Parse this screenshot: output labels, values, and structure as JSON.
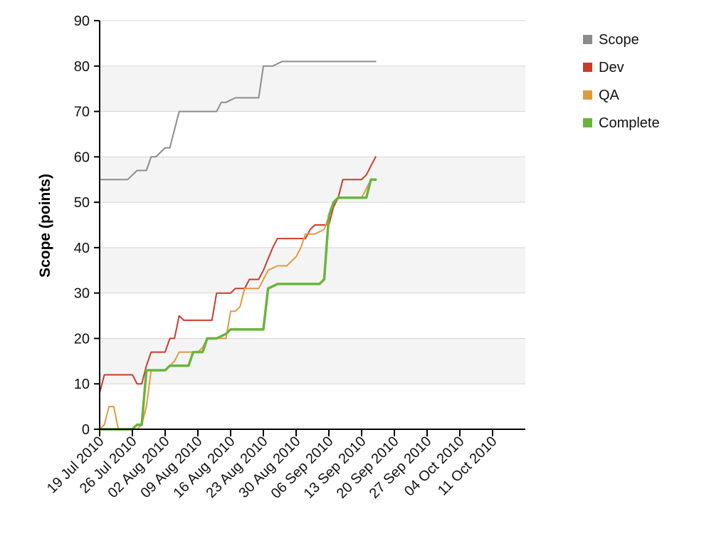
{
  "chart_data": {
    "type": "line",
    "title": "",
    "xlabel": "",
    "ylabel": "Scope (points)",
    "ylim": [
      0,
      90
    ],
    "xlim": [
      "2010-07-19",
      "2010-10-18"
    ],
    "yticks": [
      "0",
      "10",
      "20",
      "30",
      "40",
      "50",
      "60",
      "70",
      "80",
      "90"
    ],
    "xticks": [
      "19 Jul 2010",
      "26 Jul 2010",
      "02 Aug 2010",
      "09 Aug 2010",
      "16 Aug 2010",
      "23 Aug 2010",
      "30 Aug 2010",
      "06 Sep 2010",
      "13 Sep 2010",
      "20 Sep 2010",
      "27 Sep 2010",
      "04 Oct 2010",
      "11 Oct 2010"
    ],
    "xtick_dates": [
      "2010-07-19",
      "2010-07-26",
      "2010-08-02",
      "2010-08-09",
      "2010-08-16",
      "2010-08-23",
      "2010-08-30",
      "2010-09-06",
      "2010-09-13",
      "2010-09-20",
      "2010-09-27",
      "2010-10-04",
      "2010-10-11"
    ],
    "grid": true,
    "alternating_bands": true,
    "legend_position": "top-right",
    "series": [
      {
        "name": "Scope",
        "color": "#8c8c8c",
        "width": 2,
        "points": [
          [
            "2010-07-19",
            55
          ],
          [
            "2010-07-22",
            55
          ],
          [
            "2010-07-25",
            55
          ],
          [
            "2010-07-26",
            56
          ],
          [
            "2010-07-27",
            57
          ],
          [
            "2010-07-29",
            57
          ],
          [
            "2010-07-30",
            60
          ],
          [
            "2010-07-31",
            60
          ],
          [
            "2010-08-01",
            61
          ],
          [
            "2010-08-02",
            62
          ],
          [
            "2010-08-03",
            62
          ],
          [
            "2010-08-05",
            70
          ],
          [
            "2010-08-07",
            70
          ],
          [
            "2010-08-10",
            70
          ],
          [
            "2010-08-13",
            70
          ],
          [
            "2010-08-14",
            72
          ],
          [
            "2010-08-15",
            72
          ],
          [
            "2010-08-17",
            73
          ],
          [
            "2010-08-19",
            73
          ],
          [
            "2010-08-22",
            73
          ],
          [
            "2010-08-23",
            80
          ],
          [
            "2010-08-25",
            80
          ],
          [
            "2010-08-27",
            81
          ],
          [
            "2010-09-01",
            81
          ],
          [
            "2010-09-05",
            81
          ],
          [
            "2010-09-12",
            81
          ],
          [
            "2010-09-16",
            81
          ]
        ]
      },
      {
        "name": "Dev",
        "color": "#cc3b2a",
        "width": 2,
        "points": [
          [
            "2010-07-19",
            8
          ],
          [
            "2010-07-20",
            12
          ],
          [
            "2010-07-22",
            12
          ],
          [
            "2010-07-24",
            12
          ],
          [
            "2010-07-26",
            12
          ],
          [
            "2010-07-27",
            10
          ],
          [
            "2010-07-28",
            10
          ],
          [
            "2010-07-29",
            14
          ],
          [
            "2010-07-30",
            17
          ],
          [
            "2010-07-31",
            17
          ],
          [
            "2010-08-02",
            17
          ],
          [
            "2010-08-03",
            20
          ],
          [
            "2010-08-04",
            20
          ],
          [
            "2010-08-05",
            25
          ],
          [
            "2010-08-06",
            24
          ],
          [
            "2010-08-08",
            24
          ],
          [
            "2010-08-10",
            24
          ],
          [
            "2010-08-12",
            24
          ],
          [
            "2010-08-13",
            30
          ],
          [
            "2010-08-14",
            30
          ],
          [
            "2010-08-16",
            30
          ],
          [
            "2010-08-17",
            31
          ],
          [
            "2010-08-19",
            31
          ],
          [
            "2010-08-20",
            33
          ],
          [
            "2010-08-22",
            33
          ],
          [
            "2010-08-23",
            35
          ],
          [
            "2010-08-25",
            40
          ],
          [
            "2010-08-26",
            42
          ],
          [
            "2010-08-28",
            42
          ],
          [
            "2010-08-30",
            42
          ],
          [
            "2010-09-01",
            42
          ],
          [
            "2010-09-02",
            44
          ],
          [
            "2010-09-03",
            45
          ],
          [
            "2010-09-05",
            45
          ],
          [
            "2010-09-06",
            45
          ],
          [
            "2010-09-07",
            49
          ],
          [
            "2010-09-08",
            51
          ],
          [
            "2010-09-09",
            55
          ],
          [
            "2010-09-11",
            55
          ],
          [
            "2010-09-13",
            55
          ],
          [
            "2010-09-14",
            56
          ],
          [
            "2010-09-15",
            58
          ],
          [
            "2010-09-16",
            60
          ]
        ]
      },
      {
        "name": "QA",
        "color": "#e09a3e",
        "width": 2,
        "points": [
          [
            "2010-07-19",
            0
          ],
          [
            "2010-07-20",
            1
          ],
          [
            "2010-07-21",
            5
          ],
          [
            "2010-07-22",
            5
          ],
          [
            "2010-07-23",
            0
          ],
          [
            "2010-07-25",
            0
          ],
          [
            "2010-07-26",
            0
          ],
          [
            "2010-07-27",
            0
          ],
          [
            "2010-07-28",
            1
          ],
          [
            "2010-07-29",
            5
          ],
          [
            "2010-07-30",
            13
          ],
          [
            "2010-08-01",
            13
          ],
          [
            "2010-08-02",
            13
          ],
          [
            "2010-08-03",
            14
          ],
          [
            "2010-08-04",
            15
          ],
          [
            "2010-08-05",
            17
          ],
          [
            "2010-08-07",
            17
          ],
          [
            "2010-08-09",
            17
          ],
          [
            "2010-08-10",
            18
          ],
          [
            "2010-08-11",
            20
          ],
          [
            "2010-08-13",
            20
          ],
          [
            "2010-08-15",
            20
          ],
          [
            "2010-08-16",
            26
          ],
          [
            "2010-08-17",
            26
          ],
          [
            "2010-08-18",
            27
          ],
          [
            "2010-08-19",
            31
          ],
          [
            "2010-08-20",
            31
          ],
          [
            "2010-08-22",
            31
          ],
          [
            "2010-08-24",
            35
          ],
          [
            "2010-08-26",
            36
          ],
          [
            "2010-08-28",
            36
          ],
          [
            "2010-08-30",
            38
          ],
          [
            "2010-08-31",
            40
          ],
          [
            "2010-09-01",
            43
          ],
          [
            "2010-09-03",
            43
          ],
          [
            "2010-09-05",
            44
          ],
          [
            "2010-09-06",
            47
          ],
          [
            "2010-09-07",
            50
          ],
          [
            "2010-09-08",
            51
          ],
          [
            "2010-09-10",
            51
          ],
          [
            "2010-09-13",
            51
          ],
          [
            "2010-09-14",
            53
          ],
          [
            "2010-09-15",
            55
          ],
          [
            "2010-09-16",
            55
          ]
        ]
      },
      {
        "name": "Complete",
        "color": "#6ab43d",
        "width": 3.5,
        "points": [
          [
            "2010-07-19",
            0
          ],
          [
            "2010-07-22",
            0
          ],
          [
            "2010-07-25",
            0
          ],
          [
            "2010-07-26",
            0
          ],
          [
            "2010-07-27",
            1
          ],
          [
            "2010-07-28",
            1
          ],
          [
            "2010-07-29",
            13
          ],
          [
            "2010-07-31",
            13
          ],
          [
            "2010-08-02",
            13
          ],
          [
            "2010-08-03",
            14
          ],
          [
            "2010-08-05",
            14
          ],
          [
            "2010-08-07",
            14
          ],
          [
            "2010-08-08",
            17
          ],
          [
            "2010-08-10",
            17
          ],
          [
            "2010-08-11",
            20
          ],
          [
            "2010-08-13",
            20
          ],
          [
            "2010-08-15",
            21
          ],
          [
            "2010-08-16",
            22
          ],
          [
            "2010-08-18",
            22
          ],
          [
            "2010-08-20",
            22
          ],
          [
            "2010-08-23",
            22
          ],
          [
            "2010-08-24",
            31
          ],
          [
            "2010-08-26",
            32
          ],
          [
            "2010-08-28",
            32
          ],
          [
            "2010-08-30",
            32
          ],
          [
            "2010-09-01",
            32
          ],
          [
            "2010-09-04",
            32
          ],
          [
            "2010-09-05",
            33
          ],
          [
            "2010-09-06",
            47
          ],
          [
            "2010-09-07",
            50
          ],
          [
            "2010-09-08",
            51
          ],
          [
            "2010-09-10",
            51
          ],
          [
            "2010-09-13",
            51
          ],
          [
            "2010-09-14",
            51
          ],
          [
            "2010-09-15",
            55
          ],
          [
            "2010-09-16",
            55
          ]
        ]
      }
    ]
  }
}
